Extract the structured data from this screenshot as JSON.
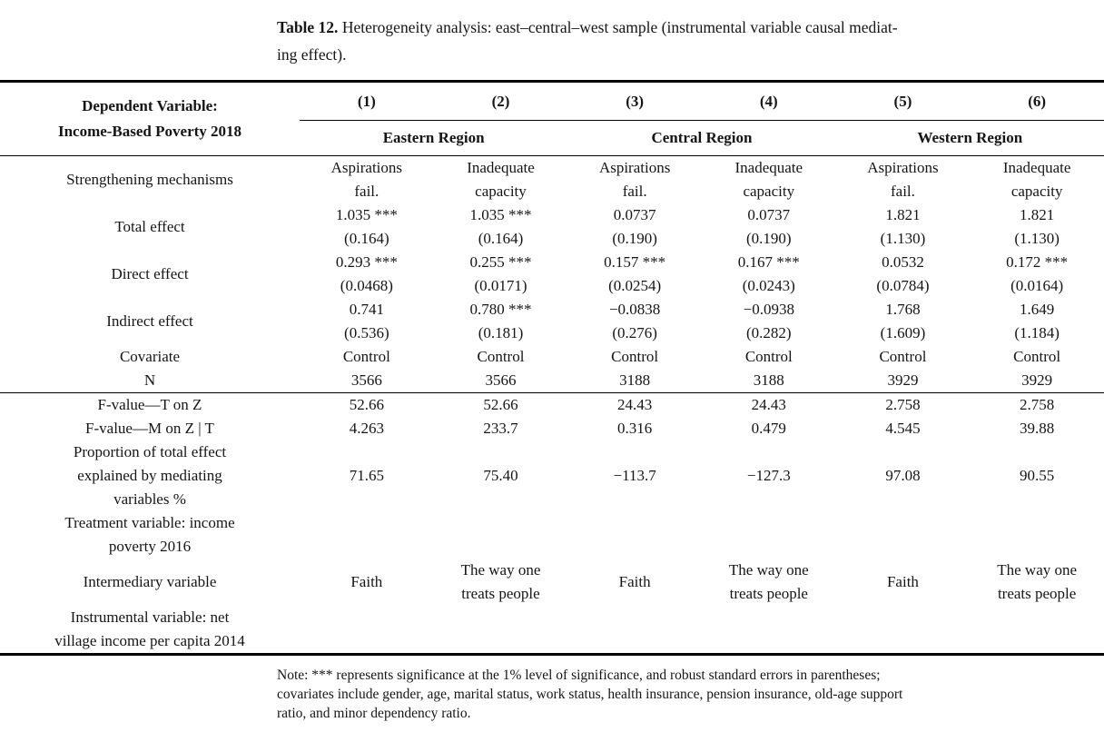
{
  "title": {
    "label": "Table 12.",
    "line1": "Heterogeneity analysis: east–central–west sample (instrumental variable causal mediat-",
    "line2": "ing effect)."
  },
  "table": {
    "header": {
      "dependent_variable_line1": "Dependent Variable:",
      "dependent_variable_line2": "Income-Based Poverty 2018",
      "column_numbers": [
        "(1)",
        "(2)",
        "(3)",
        "(4)",
        "(5)",
        "(6)"
      ],
      "region_groups": [
        "Eastern Region",
        "Central Region",
        "Western Region"
      ]
    },
    "sections": [
      {
        "rows": [
          {
            "label": "Strengthening mechanisms",
            "cells": [
              "Aspirations\nfail.",
              "Inadequate\ncapacity",
              "Aspirations\nfail.",
              "Inadequate\ncapacity",
              "Aspirations\nfail.",
              "Inadequate\ncapacity"
            ]
          },
          {
            "label": "Total effect",
            "cells": [
              "1.035 ***\n(0.164)",
              "1.035 ***\n(0.164)",
              "0.0737\n(0.190)",
              "0.0737\n(0.190)",
              "1.821\n(1.130)",
              "1.821\n(1.130)"
            ]
          },
          {
            "label": "Direct effect",
            "cells": [
              "0.293 ***\n(0.0468)",
              "0.255 ***\n(0.0171)",
              "0.157 ***\n(0.0254)",
              "0.167 ***\n(0.0243)",
              "0.0532\n(0.0784)",
              "0.172 ***\n(0.0164)"
            ]
          },
          {
            "label": "Indirect effect",
            "cells": [
              "0.741\n(0.536)",
              "0.780 ***\n(0.181)",
              "−0.0838\n(0.276)",
              "−0.0938\n(0.282)",
              "1.768\n(1.609)",
              "1.649\n(1.184)"
            ]
          },
          {
            "label": "Covariate",
            "cells": [
              "Control",
              "Control",
              "Control",
              "Control",
              "Control",
              "Control"
            ]
          },
          {
            "label": "N",
            "cells": [
              "3566",
              "3566",
              "3188",
              "3188",
              "3929",
              "3929"
            ]
          }
        ]
      },
      {
        "rows": [
          {
            "label": "F-value—T on Z",
            "cells": [
              "52.66",
              "52.66",
              "24.43",
              "24.43",
              "2.758",
              "2.758"
            ]
          },
          {
            "label": "F-value—M on Z | T",
            "cells": [
              "4.263",
              "233.7",
              "0.316",
              "0.479",
              "4.545",
              "39.88"
            ]
          },
          {
            "label": "Proportion of total effect\nexplained by mediating\nvariables %",
            "cells": [
              "71.65",
              "75.40",
              "−113.7",
              "−127.3",
              "97.08",
              "90.55"
            ]
          },
          {
            "label": "Treatment variable: income\npoverty 2016",
            "cells": [
              "",
              "",
              "",
              "",
              "",
              ""
            ]
          },
          {
            "label": "Intermediary variable",
            "cells": [
              "Faith",
              "The way one\ntreats people",
              "Faith",
              "The way one\ntreats people",
              "Faith",
              "The way one\ntreats people"
            ]
          },
          {
            "label": "Instrumental variable: net\nvillage income per capita 2014",
            "cells": [
              "",
              "",
              "",
              "",
              "",
              ""
            ]
          }
        ]
      }
    ]
  },
  "note": {
    "lines": [
      "Note: *** represents significance at the 1% level of significance, and robust standard errors in parentheses;",
      "covariates include gender, age, marital status, work status, health insurance, pension insurance, old-age support",
      "ratio, and minor dependency ratio."
    ]
  }
}
